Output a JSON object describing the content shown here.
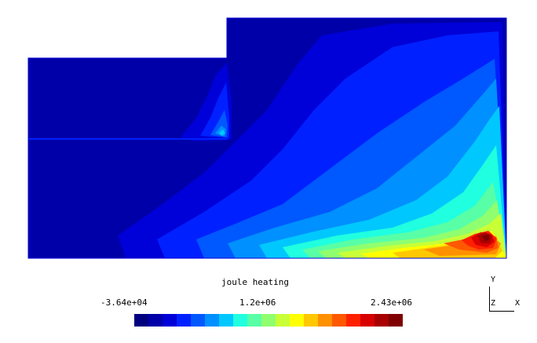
{
  "legend": {
    "title": "joule heating",
    "min_label": "-3.64e+04",
    "mid_label": "1.2e+06",
    "max_label": "2.43e+06"
  },
  "colormap": [
    "#00007f",
    "#0000a8",
    "#0000d8",
    "#0020ff",
    "#0058ff",
    "#0090ff",
    "#00c8ff",
    "#20ffdf",
    "#58ffa7",
    "#90ff6f",
    "#c8ff37",
    "#ffff00",
    "#ffc800",
    "#ff9000",
    "#ff5800",
    "#ff2000",
    "#d80000",
    "#a80000",
    "#7f0000"
  ],
  "triad": {
    "y": "Y",
    "z": "Z",
    "x": "X"
  }
}
